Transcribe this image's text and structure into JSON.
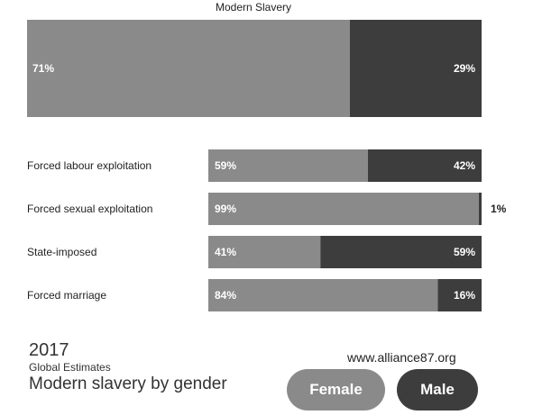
{
  "chart_data": {
    "type": "bar",
    "orientation": "horizontal-stacked-percent",
    "title": "Modern Slavery",
    "total": {
      "female": 71,
      "male": 29
    },
    "categories": [
      "Forced labour exploitation",
      "Forced sexual exploitation",
      "State-imposed",
      "Forced marriage"
    ],
    "series": [
      {
        "name": "Female",
        "values": [
          59,
          99,
          41,
          84
        ]
      },
      {
        "name": "Male",
        "values": [
          42,
          1,
          59,
          16
        ]
      }
    ],
    "colors": {
      "female": "#8a8a8a",
      "male": "#3d3d3d"
    },
    "grid": false,
    "legend": "bottom-right"
  },
  "footer": {
    "year": "2017",
    "subtitle": "Global Estimates",
    "title": "Modern slavery by gender",
    "url": "www.alliance87.org"
  },
  "legend": {
    "female_label": "Female",
    "male_label": "Male"
  }
}
